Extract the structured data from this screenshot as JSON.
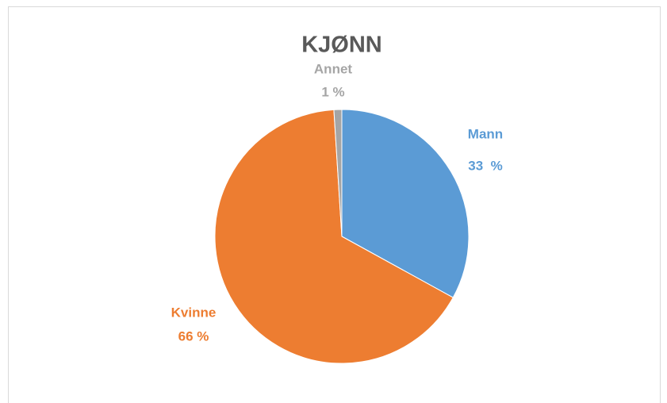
{
  "chart_data": {
    "type": "pie",
    "title": "KJØNN",
    "categories": [
      "Mann",
      "Kvinne",
      "Annet"
    ],
    "values": [
      33,
      66,
      1
    ],
    "value_labels": [
      "33  %",
      "66 %",
      "1 %"
    ],
    "colors": [
      "#5b9bd5",
      "#ed7d31",
      "#a5a5a5"
    ]
  }
}
